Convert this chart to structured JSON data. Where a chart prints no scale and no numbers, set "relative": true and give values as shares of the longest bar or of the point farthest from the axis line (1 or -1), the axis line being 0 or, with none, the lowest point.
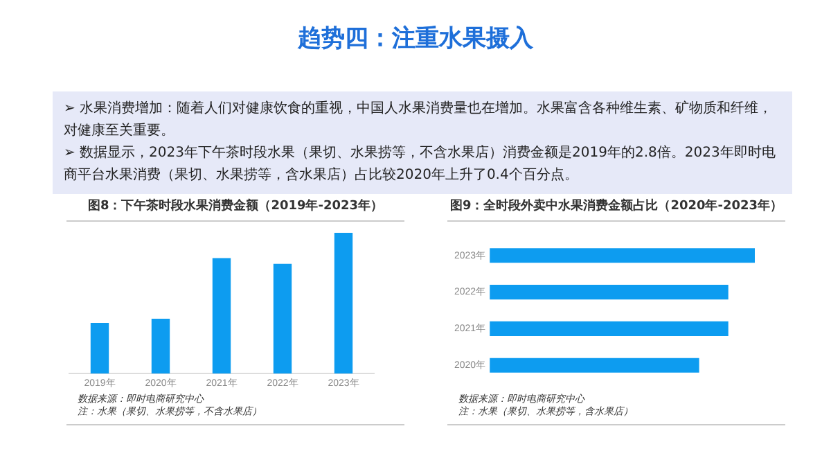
{
  "chart_data": [
    {
      "type": "other",
      "title": "趋势四：注重水果摄入",
      "annotations": [
        "➢ 水果消费增加：随着人们对健康饮食的重视，中国人水果消费量也在增加。水果富含各种维生素、矿物质和纤维，对健康至关重要。",
        "➢ 数据显示，2023年下午茶时段水果（果切、水果捞等，不含水果店）消费金额是2019年的2.8倍。2023年即时电商平台水果消费（果切、水果捞等，含水果店）占比较2020年上升了0.4个百分点。"
      ]
    },
    {
      "type": "bar",
      "title": "图8：下午茶时段水果消费金额（2019年-2023年）",
      "categories": [
        "2019年",
        "2020年",
        "2021年",
        "2022年",
        "2023年"
      ],
      "values": [
        0.36,
        0.39,
        0.82,
        0.78,
        1
      ],
      "color": "#0d9cf0",
      "relative": true,
      "annotations": [
        "数据来源：即时电商研究中心",
        "注：水果（果切、水果捞等，不含水果店）"
      ]
    },
    {
      "type": "bar",
      "orientation": "horizontal",
      "title": "图9：全时段外卖中水果消费金额占比（2020年-2023年）",
      "categories": [
        "2023年",
        "2022年",
        "2021年",
        "2020年"
      ],
      "values": [
        1,
        0.9,
        0.9,
        0.79
      ],
      "color": "#0d9cf0",
      "relative": true,
      "annotations": [
        "数据来源：即时电商研究中心",
        "注：水果（果切、水果捞等，含水果店）"
      ]
    }
  ]
}
